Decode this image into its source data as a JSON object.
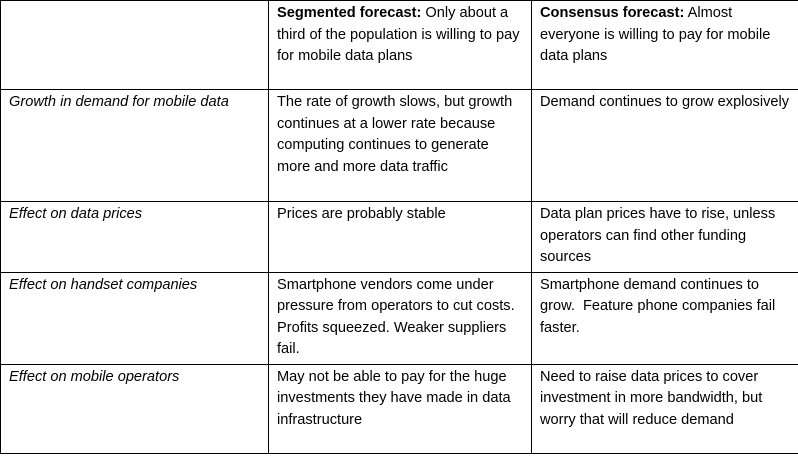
{
  "table": {
    "header": {
      "corner": "",
      "segmented": {
        "title": "Segmented forecast:",
        "desc": " Only about a third of the population is willing to pay for mobile data plans"
      },
      "consensus": {
        "title": "Consensus forecast:",
        "desc": " Almost everyone is willing to pay for mobile data plans"
      }
    },
    "rows": [
      {
        "label": "Growth in demand for mobile data",
        "segmented": "The rate of growth slows, but growth continues at a lower rate because computing continues to generate more and more data traffic",
        "consensus": "Demand continues to grow explosively"
      },
      {
        "label": "Effect on data prices",
        "segmented": "Prices are probably stable",
        "consensus": "Data plan prices have to rise, unless operators can find other funding sources"
      },
      {
        "label": "Effect on handset companies",
        "segmented": "Smartphone vendors come under pressure from operators to cut costs.  Profits squeezed. Weaker suppliers fail.",
        "consensus": "Smartphone demand continues to grow.  Feature phone companies fail faster."
      },
      {
        "label": "Effect on mobile operators",
        "segmented": "May not be able to pay for the huge investments they have made in data infrastructure",
        "consensus": "Need to raise data prices to cover investment in more bandwidth, but worry that will reduce demand"
      }
    ]
  }
}
